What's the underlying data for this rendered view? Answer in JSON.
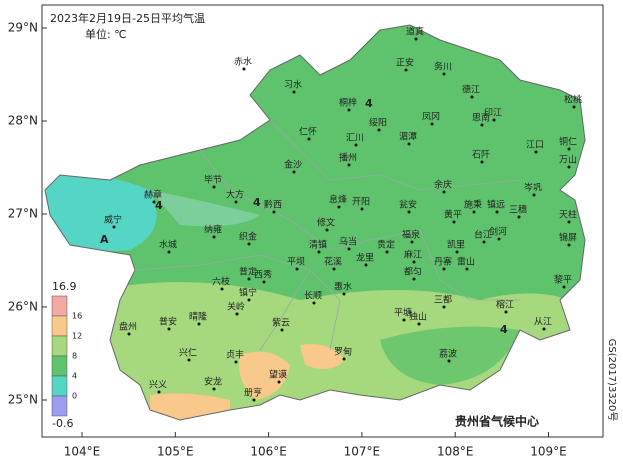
{
  "title": "2023年2月19日-25日平均气温",
  "unit": "单位: ℃",
  "credit": "贵州省气候中心",
  "map_code": "GS(2017)3320号",
  "axes": {
    "lat": [
      "29°N",
      "28°N",
      "27°N",
      "26°N",
      "25°N"
    ],
    "lon": [
      "104°E",
      "105°E",
      "106°E",
      "107°E",
      "108°E",
      "109°E"
    ]
  },
  "legend": {
    "labels": [
      16.9,
      16,
      12,
      8,
      4,
      0,
      -0.6
    ],
    "colors": [
      "#f4a8a2",
      "#f8c98b",
      "#a6d87e",
      "#5fc26c",
      "#55d5c3",
      "#9d9cf0"
    ]
  },
  "contour_labels": [
    "4",
    "4",
    "4",
    "A",
    "4"
  ],
  "cities": [
    "道真",
    "正安",
    "务川",
    "赤水",
    "习水",
    "桐梓",
    "德江",
    "印江",
    "松桃",
    "凤冈",
    "湄潭",
    "绥阳",
    "汇川",
    "播州",
    "仁怀",
    "金沙",
    "思南",
    "铜仁",
    "万山",
    "江口",
    "石阡",
    "毕节",
    "大方",
    "黔西",
    "赫章",
    "威宁",
    "息烽",
    "开阳",
    "余庆",
    "施秉",
    "镇远",
    "岑巩",
    "三穗",
    "天柱",
    "黄平",
    "瓮安",
    "修文",
    "纳雍",
    "织金",
    "清镇",
    "乌当",
    "福泉",
    "麻江",
    "凯里",
    "台江",
    "剑河",
    "锦屏",
    "水城",
    "六枝",
    "普定",
    "平坝",
    "西秀",
    "花溪",
    "龙里",
    "贵定",
    "都匀",
    "丹寨",
    "雷山",
    "黎平",
    "长顺",
    "惠水",
    "平塘",
    "独山",
    "三都",
    "榕江",
    "从江",
    "盘州",
    "普安",
    "晴隆",
    "关岭",
    "镇宁",
    "紫云",
    "兴仁",
    "贞丰",
    "望谟",
    "罗甸",
    "荔波",
    "兴义",
    "安龙",
    "册亨"
  ]
}
